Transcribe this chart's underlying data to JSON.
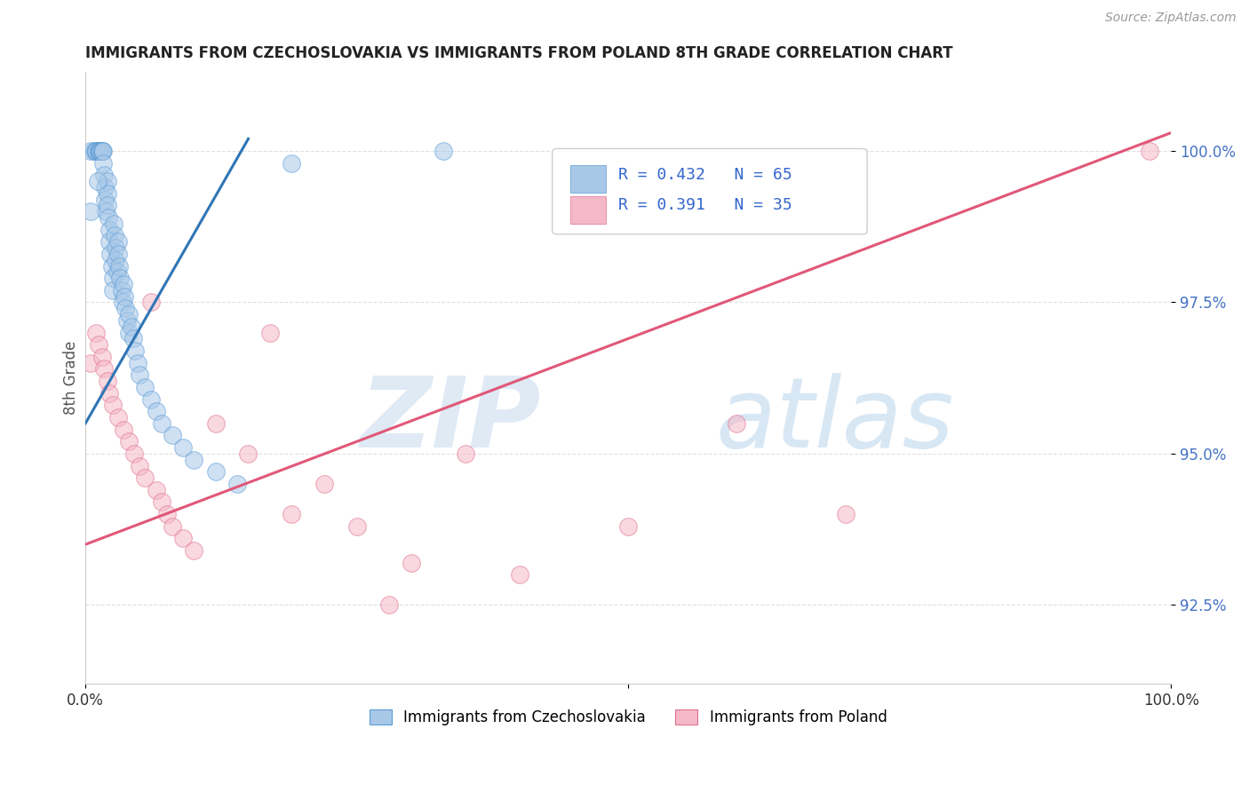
{
  "title": "IMMIGRANTS FROM CZECHOSLOVAKIA VS IMMIGRANTS FROM POLAND 8TH GRADE CORRELATION CHART",
  "source": "Source: ZipAtlas.com",
  "ylabel": "8th Grade",
  "legend_label_1": "Immigrants from Czechoslovakia",
  "legend_label_2": "Immigrants from Poland",
  "legend_R1": "R = 0.432",
  "legend_N1": "N = 65",
  "legend_R2": "R = 0.391",
  "legend_N2": "N = 35",
  "color_blue": "#a8c8e8",
  "color_blue_dark": "#5b9bd5",
  "color_blue_line": "#2f75b6",
  "color_pink": "#f5b8c8",
  "color_pink_dark": "#e07090",
  "color_pink_line": "#e05878",
  "background_color": "#ffffff",
  "xmin": 0.0,
  "xmax": 1.0,
  "ymin": 91.2,
  "ymax": 101.3,
  "ytick_positions": [
    92.5,
    95.0,
    97.5,
    100.0
  ],
  "ytick_labels": [
    "92.5%",
    "95.0%",
    "97.5%",
    "100.0%"
  ],
  "blue_line_x0": 0.0,
  "blue_line_x1": 0.15,
  "blue_line_y0": 95.5,
  "blue_line_y1": 100.2,
  "pink_line_x0": 0.0,
  "pink_line_x1": 1.0,
  "pink_line_y0": 93.5,
  "pink_line_y1": 100.3,
  "czech_x": [
    0.005,
    0.008,
    0.01,
    0.01,
    0.01,
    0.012,
    0.012,
    0.013,
    0.013,
    0.014,
    0.014,
    0.015,
    0.015,
    0.015,
    0.016,
    0.016,
    0.017,
    0.018,
    0.018,
    0.019,
    0.02,
    0.02,
    0.02,
    0.021,
    0.022,
    0.022,
    0.023,
    0.024,
    0.025,
    0.025,
    0.026,
    0.027,
    0.028,
    0.028,
    0.029,
    0.03,
    0.03,
    0.031,
    0.032,
    0.033,
    0.034,
    0.035,
    0.036,
    0.037,
    0.038,
    0.04,
    0.04,
    0.042,
    0.044,
    0.046,
    0.048,
    0.05,
    0.055,
    0.06,
    0.065,
    0.07,
    0.08,
    0.09,
    0.1,
    0.12,
    0.14,
    0.19,
    0.33,
    0.005,
    0.011
  ],
  "czech_y": [
    100.0,
    100.0,
    100.0,
    100.0,
    100.0,
    100.0,
    100.0,
    100.0,
    100.0,
    100.0,
    100.0,
    100.0,
    100.0,
    100.0,
    100.0,
    99.8,
    99.6,
    99.4,
    99.2,
    99.0,
    99.5,
    99.3,
    99.1,
    98.9,
    98.7,
    98.5,
    98.3,
    98.1,
    97.9,
    97.7,
    98.8,
    98.6,
    98.4,
    98.2,
    98.0,
    98.5,
    98.3,
    98.1,
    97.9,
    97.7,
    97.5,
    97.8,
    97.6,
    97.4,
    97.2,
    97.0,
    97.3,
    97.1,
    96.9,
    96.7,
    96.5,
    96.3,
    96.1,
    95.9,
    95.7,
    95.5,
    95.3,
    95.1,
    94.9,
    94.7,
    94.5,
    99.8,
    100.0,
    99.0,
    99.5
  ],
  "poland_x": [
    0.005,
    0.01,
    0.012,
    0.015,
    0.017,
    0.02,
    0.022,
    0.025,
    0.03,
    0.035,
    0.04,
    0.045,
    0.05,
    0.055,
    0.06,
    0.065,
    0.07,
    0.075,
    0.08,
    0.09,
    0.1,
    0.12,
    0.15,
    0.17,
    0.19,
    0.22,
    0.25,
    0.28,
    0.3,
    0.35,
    0.4,
    0.5,
    0.6,
    0.7,
    0.98
  ],
  "poland_y": [
    96.5,
    97.0,
    96.8,
    96.6,
    96.4,
    96.2,
    96.0,
    95.8,
    95.6,
    95.4,
    95.2,
    95.0,
    94.8,
    94.6,
    97.5,
    94.4,
    94.2,
    94.0,
    93.8,
    93.6,
    93.4,
    95.5,
    95.0,
    97.0,
    94.0,
    94.5,
    93.8,
    92.5,
    93.2,
    95.0,
    93.0,
    93.8,
    95.5,
    94.0,
    100.0
  ]
}
